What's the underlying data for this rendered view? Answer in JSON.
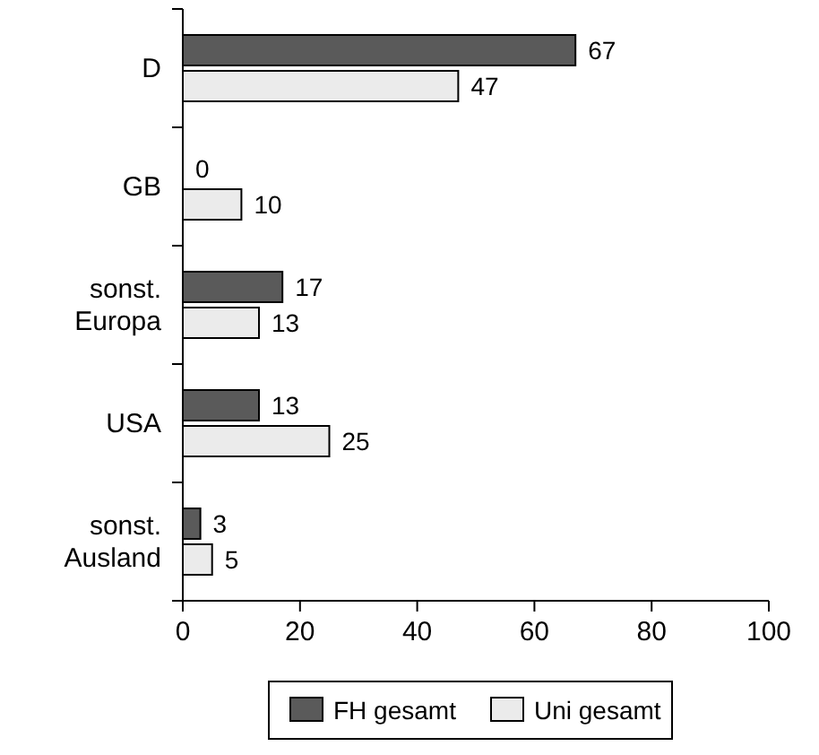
{
  "chart_data": {
    "type": "bar",
    "orientation": "horizontal",
    "categories": [
      "D",
      "GB",
      "sonst. Europa",
      "USA",
      "sonst. Ausland"
    ],
    "series": [
      {
        "name": "FH gesamt",
        "color": "#5a5a5a",
        "values": [
          67,
          0,
          17,
          13,
          3
        ]
      },
      {
        "name": "Uni gesamt",
        "color": "#ebebeb",
        "values": [
          47,
          10,
          13,
          25,
          5
        ]
      }
    ],
    "xlim": [
      0,
      100
    ],
    "xticks": [
      0,
      20,
      40,
      60,
      80,
      100
    ],
    "data_labels": true,
    "legend": "bottom",
    "grid": false
  }
}
